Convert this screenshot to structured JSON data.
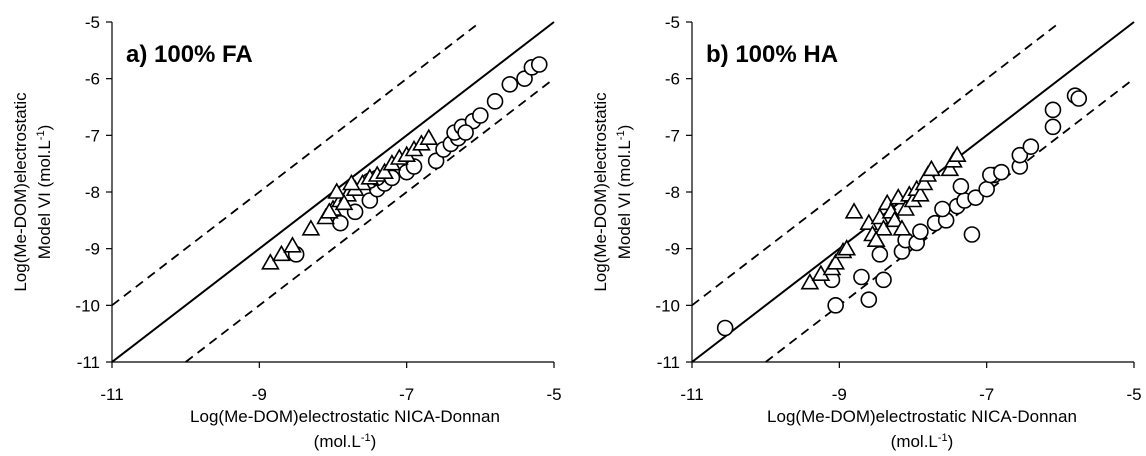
{
  "chart_data": [
    {
      "type": "scatter",
      "title": "a) 100% FA",
      "xlabel_line1": "Log(Me-DOM)electrostatic NICA-Donnan",
      "xlabel_line2": "(mol.L",
      "xlabel_line2_sup": "-1",
      "xlabel_line2_end": ")",
      "ylabel_line1": "Log(Me-DOM)electrostatic",
      "ylabel_line2": "Model VI (mol.L",
      "ylabel_line2_sup": "-1",
      "ylabel_line2_end": ")",
      "xlim": [
        -11,
        -5
      ],
      "ylim": [
        -11,
        -5
      ],
      "xticks": [
        "-11",
        "-9",
        "-7",
        "-5"
      ],
      "xtick_values": [
        -11,
        -9,
        -7,
        -5
      ],
      "yticks": [
        "-5",
        "-6",
        "-7",
        "-8",
        "-9",
        "-10",
        "-11"
      ],
      "ytick_values": [
        -5,
        -6,
        -7,
        -8,
        -9,
        -10,
        -11
      ],
      "reference_lines": [
        {
          "style": "solid",
          "offset": 0
        },
        {
          "style": "dashed",
          "offset": 1
        },
        {
          "style": "dashed",
          "offset": -1
        }
      ],
      "series": [
        {
          "marker": "circle",
          "points": [
            [
              -8.5,
              -9.1
            ],
            [
              -7.9,
              -8.55
            ],
            [
              -7.7,
              -8.35
            ],
            [
              -7.5,
              -8.15
            ],
            [
              -7.4,
              -7.95
            ],
            [
              -7.3,
              -7.85
            ],
            [
              -7.5,
              -7.8
            ],
            [
              -7.2,
              -7.75
            ],
            [
              -7.0,
              -7.65
            ],
            [
              -6.9,
              -7.55
            ],
            [
              -6.6,
              -7.45
            ],
            [
              -6.5,
              -7.25
            ],
            [
              -6.4,
              -7.15
            ],
            [
              -6.3,
              -7.05
            ],
            [
              -6.35,
              -6.95
            ],
            [
              -6.25,
              -6.85
            ],
            [
              -6.1,
              -6.75
            ],
            [
              -6.0,
              -6.65
            ],
            [
              -5.8,
              -6.4
            ],
            [
              -5.6,
              -6.1
            ],
            [
              -5.4,
              -6.0
            ],
            [
              -5.3,
              -5.8
            ],
            [
              -5.2,
              -5.75
            ],
            [
              -6.2,
              -6.95
            ],
            [
              -7.4,
              -7.75
            ]
          ]
        },
        {
          "marker": "triangle",
          "points": [
            [
              -8.85,
              -9.25
            ],
            [
              -8.7,
              -9.1
            ],
            [
              -8.55,
              -8.95
            ],
            [
              -8.3,
              -8.65
            ],
            [
              -8.1,
              -8.45
            ],
            [
              -8.0,
              -8.3
            ],
            [
              -7.9,
              -8.15
            ],
            [
              -7.8,
              -8.05
            ],
            [
              -7.7,
              -7.95
            ],
            [
              -7.6,
              -7.85
            ],
            [
              -7.5,
              -7.75
            ],
            [
              -7.4,
              -7.7
            ],
            [
              -7.3,
              -7.65
            ],
            [
              -7.2,
              -7.5
            ],
            [
              -7.1,
              -7.4
            ],
            [
              -7.0,
              -7.35
            ],
            [
              -6.9,
              -7.25
            ],
            [
              -6.8,
              -7.15
            ],
            [
              -6.7,
              -7.05
            ],
            [
              -7.95,
              -8.0
            ],
            [
              -7.85,
              -8.2
            ],
            [
              -8.05,
              -8.35
            ],
            [
              -7.75,
              -7.85
            ]
          ]
        }
      ]
    },
    {
      "type": "scatter",
      "title": "b) 100% HA",
      "xlabel_line1": "Log(Me-DOM)electrostatic NICA-Donnan",
      "xlabel_line2": "(mol.L",
      "xlabel_line2_sup": "-1",
      "xlabel_line2_end": ")",
      "ylabel_line1": "Log(Me-DOM)electrostatic",
      "ylabel_line2": "Model VI (mol.L",
      "ylabel_line2_sup": "-1",
      "ylabel_line2_end": ")",
      "xlim": [
        -11,
        -5
      ],
      "ylim": [
        -11,
        -5
      ],
      "xticks": [
        "-11",
        "-9",
        "-7",
        "-5"
      ],
      "xtick_values": [
        -11,
        -9,
        -7,
        -5
      ],
      "yticks": [
        "-5",
        "-6",
        "-7",
        "-8",
        "-9",
        "-10",
        "-11"
      ],
      "ytick_values": [
        -5,
        -6,
        -7,
        -8,
        -9,
        -10,
        -11
      ],
      "reference_lines": [
        {
          "style": "solid",
          "offset": 0
        },
        {
          "style": "dashed",
          "offset": 1
        },
        {
          "style": "dashed",
          "offset": -1
        }
      ],
      "series": [
        {
          "marker": "circle",
          "points": [
            [
              -10.55,
              -10.4
            ],
            [
              -9.05,
              -10.0
            ],
            [
              -9.1,
              -9.55
            ],
            [
              -8.6,
              -9.9
            ],
            [
              -8.7,
              -9.5
            ],
            [
              -8.4,
              -9.55
            ],
            [
              -8.45,
              -9.1
            ],
            [
              -8.15,
              -9.05
            ],
            [
              -8.1,
              -8.85
            ],
            [
              -7.95,
              -8.9
            ],
            [
              -7.9,
              -8.7
            ],
            [
              -7.7,
              -8.55
            ],
            [
              -7.55,
              -8.5
            ],
            [
              -7.6,
              -8.3
            ],
            [
              -7.4,
              -8.25
            ],
            [
              -7.2,
              -8.75
            ],
            [
              -7.3,
              -8.15
            ],
            [
              -7.15,
              -8.1
            ],
            [
              -7.0,
              -7.95
            ],
            [
              -6.9,
              -7.7
            ],
            [
              -7.35,
              -7.9
            ],
            [
              -6.95,
              -7.7
            ],
            [
              -6.8,
              -7.65
            ],
            [
              -6.55,
              -7.55
            ],
            [
              -6.55,
              -7.35
            ],
            [
              -6.4,
              -7.2
            ],
            [
              -6.1,
              -6.85
            ],
            [
              -6.1,
              -6.55
            ],
            [
              -5.8,
              -6.3
            ],
            [
              -5.75,
              -6.35
            ]
          ]
        },
        {
          "marker": "triangle",
          "points": [
            [
              -9.4,
              -9.6
            ],
            [
              -9.25,
              -9.45
            ],
            [
              -9.1,
              -9.35
            ],
            [
              -9.05,
              -9.25
            ],
            [
              -8.95,
              -9.05
            ],
            [
              -8.8,
              -8.35
            ],
            [
              -8.6,
              -8.55
            ],
            [
              -8.55,
              -8.75
            ],
            [
              -8.5,
              -8.85
            ],
            [
              -8.45,
              -8.45
            ],
            [
              -8.4,
              -8.65
            ],
            [
              -8.35,
              -8.2
            ],
            [
              -8.3,
              -8.35
            ],
            [
              -8.25,
              -8.5
            ],
            [
              -8.2,
              -8.1
            ],
            [
              -8.15,
              -8.65
            ],
            [
              -8.1,
              -8.3
            ],
            [
              -8.05,
              -8.05
            ],
            [
              -8.0,
              -8.15
            ],
            [
              -7.95,
              -7.95
            ],
            [
              -7.9,
              -8.05
            ],
            [
              -7.85,
              -7.85
            ],
            [
              -7.8,
              -7.7
            ],
            [
              -7.75,
              -7.6
            ],
            [
              -7.5,
              -7.6
            ],
            [
              -7.45,
              -7.45
            ],
            [
              -7.4,
              -7.35
            ],
            [
              -8.5,
              -8.85
            ],
            [
              -8.9,
              -9.0
            ]
          ]
        }
      ]
    }
  ]
}
